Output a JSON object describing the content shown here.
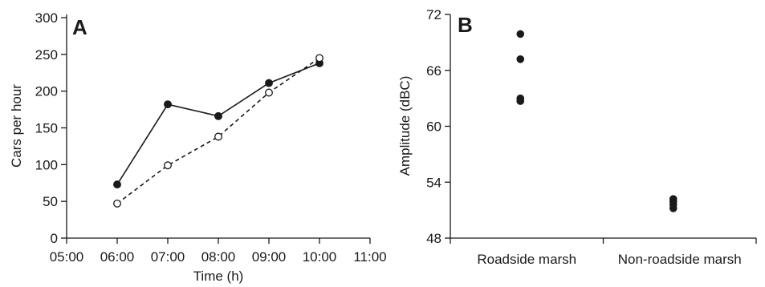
{
  "chart_data": [
    {
      "type": "line",
      "panel_label": "A",
      "title": "",
      "xlabel": "Time (h)",
      "ylabel": "Cars per hour",
      "x": [
        "06:00",
        "07:00",
        "08:00",
        "09:00",
        "10:00"
      ],
      "x_ticks": [
        "05:00",
        "06:00",
        "07:00",
        "08:00",
        "09:00",
        "10:00",
        "11:00"
      ],
      "y_ticks": [
        "0",
        "50",
        "100",
        "150",
        "200",
        "250",
        "300"
      ],
      "ylim": [
        0,
        300
      ],
      "grid": false,
      "series": [
        {
          "values": [
            73,
            182,
            166,
            211,
            238
          ],
          "line": "solid",
          "marker": "filled-circle"
        },
        {
          "values": [
            47,
            99,
            138,
            198,
            245
          ],
          "line": "dashed",
          "marker": "open-circle"
        }
      ]
    },
    {
      "type": "scatter",
      "panel_label": "B",
      "title": "",
      "xlabel": "",
      "ylabel": "Amplitude (dBC)",
      "categories": [
        "Roadside marsh",
        "Non-roadside marsh"
      ],
      "y_ticks": [
        "48",
        "54",
        "60",
        "66",
        "72"
      ],
      "ylim": [
        48,
        72
      ],
      "grid": false,
      "points": [
        {
          "category": "Roadside marsh",
          "values": [
            69.9,
            67.2,
            63.0,
            62.7
          ]
        },
        {
          "category": "Non-roadside marsh",
          "values": [
            52.2,
            51.9,
            51.6,
            51.2
          ]
        }
      ]
    }
  ],
  "colors": {
    "ink": "#1a1a1a",
    "background": "#ffffff"
  }
}
